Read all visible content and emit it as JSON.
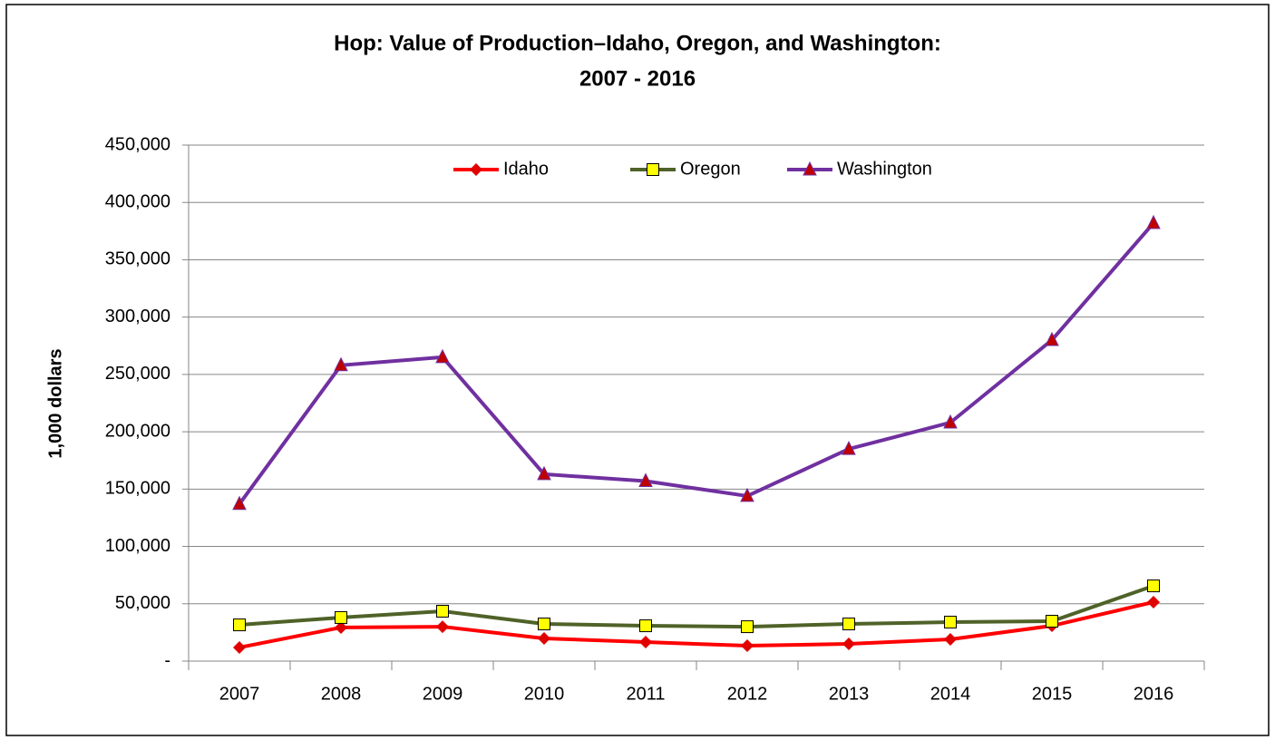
{
  "chart_data": {
    "type": "line",
    "title": [
      "Hop: Value of Production–Idaho, Oregon, and Washington:",
      "2007 - 2016"
    ],
    "y_label": "1,000 dollars",
    "categories": [
      "2007",
      "2008",
      "2009",
      "2010",
      "2011",
      "2012",
      "2013",
      "2014",
      "2015",
      "2016"
    ],
    "series": [
      {
        "name": "Idaho",
        "color": "#ff0000",
        "marker": "diamond",
        "marker_color": "#e00000",
        "values": [
          11900,
          29300,
          30000,
          19800,
          16600,
          13400,
          15000,
          19000,
          30800,
          51400
        ]
      },
      {
        "name": "Oregon",
        "color": "#4f6228",
        "marker": "square",
        "marker_color": "#ffff00",
        "values": [
          31600,
          38000,
          43500,
          32400,
          30800,
          30000,
          32400,
          34000,
          34800,
          65600
        ]
      },
      {
        "name": "Washington",
        "color": "#7030a0",
        "marker": "triangle",
        "marker_color": "#c00000",
        "values": [
          137000,
          258000,
          265000,
          163000,
          157000,
          144000,
          185000,
          208000,
          280000,
          382000
        ]
      }
    ],
    "ylim": [
      0,
      450000
    ],
    "yticks": [
      {
        "value": 0,
        "label": "-"
      },
      {
        "value": 50000,
        "label": "50,000"
      },
      {
        "value": 100000,
        "label": "100,000"
      },
      {
        "value": 150000,
        "label": "150,000"
      },
      {
        "value": 200000,
        "label": "200,000"
      },
      {
        "value": 250000,
        "label": "250,000"
      },
      {
        "value": 300000,
        "label": "300,000"
      },
      {
        "value": 350000,
        "label": "350,000"
      },
      {
        "value": 400000,
        "label": "400,000"
      },
      {
        "value": 450000,
        "label": "450,000"
      }
    ],
    "grid": true,
    "legend": "top"
  }
}
